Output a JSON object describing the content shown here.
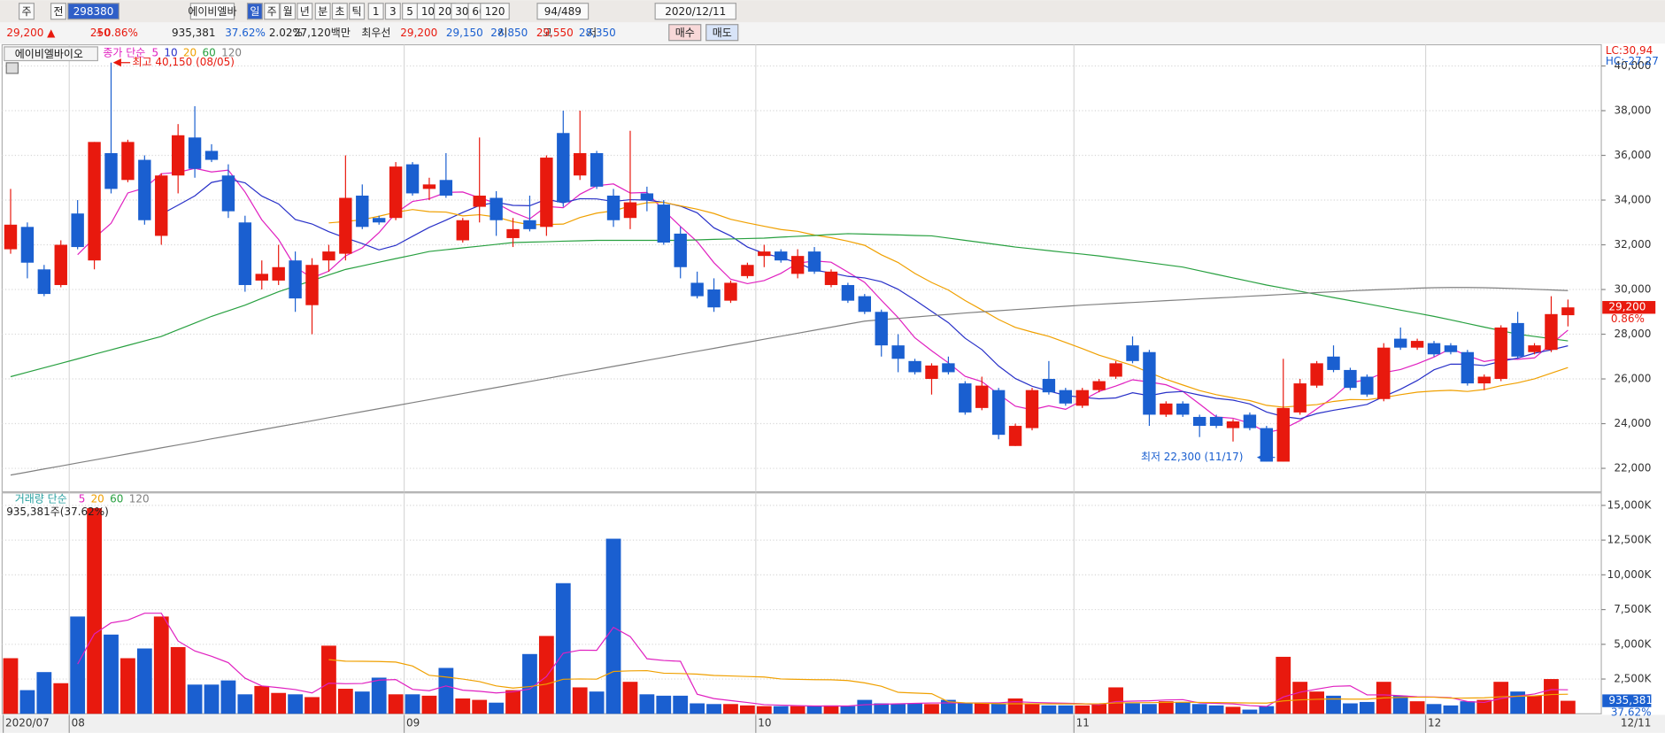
{
  "toolbar": {
    "items": [
      "주",
      "전",
      "298380",
      "에이비엘바",
      "일",
      "주",
      "월",
      "년",
      "분",
      "초",
      "틱",
      "1",
      "3",
      "5",
      "10",
      "20",
      "30",
      "60",
      "120",
      "94/489",
      "2020/12/11"
    ]
  },
  "info": {
    "items": [
      "29,200 ▲",
      "250",
      "+0.86%",
      "935,381",
      "37.62%",
      "2.02%",
      "27,120백만",
      "최우선",
      "29,200",
      "29,150",
      "시",
      "28,850",
      "고",
      "29,550",
      "저",
      "28,350",
      "매수",
      "매도"
    ]
  },
  "chart_data": [
    {
      "type": "candlestick",
      "title": "에이비엘바이오",
      "legend_label": "종가 단순",
      "categories": [
        "2020/07",
        null,
        null,
        null,
        "08",
        null,
        null,
        null,
        null,
        null,
        null,
        null,
        null,
        null,
        null,
        null,
        null,
        null,
        null,
        null,
        null,
        null,
        null,
        null,
        "09",
        null,
        null,
        null,
        null,
        null,
        null,
        null,
        null,
        null,
        null,
        null,
        null,
        null,
        null,
        null,
        null,
        null,
        null,
        null,
        null,
        "10",
        null,
        null,
        null,
        null,
        null,
        null,
        null,
        null,
        null,
        null,
        null,
        null,
        null,
        null,
        null,
        null,
        null,
        null,
        "11",
        null,
        null,
        null,
        null,
        null,
        null,
        null,
        null,
        null,
        null,
        null,
        null,
        null,
        null,
        null,
        null,
        null,
        null,
        null,
        null,
        "12",
        null,
        null,
        null,
        null,
        null,
        null,
        null,
        "12/11"
      ],
      "open": [
        31800,
        32800,
        30900,
        30200,
        33400,
        31300,
        36100,
        34900,
        35800,
        32400,
        35100,
        36800,
        36200,
        35100,
        33000,
        30400,
        30400,
        31300,
        29300,
        31300,
        31600,
        34200,
        33200,
        33200,
        35600,
        34500,
        34900,
        32200,
        33700,
        34100,
        32300,
        33100,
        32800,
        37000,
        35100,
        36100,
        34200,
        33200,
        34300,
        33800,
        32500,
        30300,
        30000,
        29500,
        30600,
        31500,
        31700,
        30700,
        31700,
        30200,
        30200,
        29700,
        29000,
        27500,
        26800,
        26000,
        26700,
        25800,
        24700,
        25500,
        23000,
        23800,
        26000,
        25500,
        24800,
        25500,
        26100,
        27500,
        27200,
        24400,
        24900,
        24300,
        24300,
        23800,
        24400,
        23800,
        22300,
        24500,
        25700,
        27000,
        26400,
        26100,
        25100,
        27800,
        27400,
        27600,
        27500,
        27200,
        25800,
        26000,
        28500,
        27200,
        27300,
        28850
      ],
      "high": [
        34500,
        33000,
        31100,
        32200,
        34000,
        36600,
        40150,
        36700,
        36000,
        35200,
        37400,
        38200,
        36500,
        35600,
        33300,
        31300,
        32000,
        31700,
        31400,
        32000,
        36000,
        34700,
        33300,
        35700,
        35700,
        35000,
        36100,
        33200,
        36800,
        34400,
        33200,
        34200,
        36000,
        38000,
        38000,
        36200,
        34500,
        37100,
        34600,
        34000,
        32800,
        30800,
        30500,
        30400,
        31200,
        32000,
        31800,
        31800,
        31900,
        30900,
        30300,
        29800,
        29100,
        28000,
        26900,
        26700,
        27000,
        25900,
        26100,
        25600,
        24000,
        25600,
        26800,
        25600,
        25600,
        26000,
        26800,
        27900,
        27300,
        25000,
        25000,
        24400,
        24400,
        24200,
        24500,
        23900,
        26900,
        26000,
        26800,
        27500,
        26500,
        26200,
        27600,
        28300,
        27800,
        27700,
        27600,
        27300,
        26200,
        28400,
        29000,
        27600,
        29700,
        29550
      ],
      "low": [
        31600,
        30500,
        29700,
        30100,
        31800,
        30900,
        34300,
        34800,
        32900,
        32000,
        34300,
        35000,
        35700,
        33200,
        29900,
        30000,
        30200,
        29000,
        28000,
        30800,
        31300,
        32700,
        32900,
        33100,
        34200,
        34000,
        34100,
        32100,
        33000,
        32400,
        31900,
        32600,
        32400,
        33700,
        34900,
        34500,
        32800,
        32700,
        33500,
        32000,
        30500,
        29600,
        29000,
        29400,
        30500,
        31000,
        31200,
        30500,
        30700,
        30100,
        29400,
        28900,
        27000,
        26300,
        26200,
        25300,
        26200,
        24400,
        24600,
        23300,
        23000,
        23700,
        25300,
        24800,
        24700,
        25400,
        26000,
        26700,
        23900,
        24300,
        24300,
        23400,
        23800,
        23200,
        23700,
        22300,
        22300,
        24400,
        25600,
        26300,
        25500,
        25200,
        25000,
        27300,
        27300,
        27000,
        27100,
        25700,
        25500,
        25900,
        26900,
        27100,
        27200,
        28350
      ],
      "close": [
        32900,
        31200,
        29800,
        32000,
        31900,
        36600,
        34500,
        36600,
        33100,
        35100,
        36900,
        35400,
        35800,
        33500,
        30200,
        30700,
        31000,
        29600,
        31100,
        31700,
        34100,
        32800,
        33000,
        35500,
        34300,
        34700,
        34200,
        33100,
        34200,
        33100,
        32700,
        32700,
        35900,
        33900,
        36100,
        34600,
        33100,
        33900,
        34000,
        32100,
        31000,
        29700,
        29200,
        30300,
        31100,
        31700,
        31300,
        31500,
        30800,
        30800,
        29500,
        29000,
        27500,
        26900,
        26300,
        26600,
        26300,
        24500,
        25700,
        23500,
        23900,
        25500,
        25400,
        24900,
        25500,
        25900,
        26700,
        26800,
        24400,
        24900,
        24400,
        23900,
        23900,
        24100,
        23800,
        22300,
        24700,
        25800,
        26700,
        26400,
        25600,
        25300,
        27400,
        27400,
        27700,
        27100,
        27200,
        25800,
        26100,
        28300,
        27000,
        27500,
        28900,
        29200
      ],
      "up_color": "#e8190e",
      "down_color": "#1a5fd0",
      "series": [
        {
          "name": "5",
          "color": "#e020c0"
        },
        {
          "name": "10",
          "color": "#2830c8"
        },
        {
          "name": "20",
          "color": "#f0a000"
        },
        {
          "name": "60",
          "color": "#28a040",
          "values": [
            26100,
            26300,
            26500,
            26700,
            26900,
            27100,
            27300,
            27500,
            27700,
            27900,
            28200,
            28500,
            28800,
            29050,
            29300,
            29600,
            29900,
            30150,
            30400,
            30650,
            30900,
            31060,
            31220,
            31380,
            31540,
            31700,
            31780,
            31860,
            31940,
            32020,
            32100,
            32120,
            32140,
            32160,
            32180,
            32200,
            32200,
            32200,
            32200,
            32200,
            32200,
            32220,
            32240,
            32260,
            32280,
            32300,
            32340,
            32380,
            32420,
            32460,
            32500,
            32480,
            32460,
            32440,
            32420,
            32400,
            32300,
            32200,
            32100,
            32000,
            31900,
            31820,
            31740,
            31660,
            31580,
            31500,
            31400,
            31300,
            31200,
            31100,
            31000,
            30840,
            30680,
            30520,
            30360,
            30200,
            30060,
            29920,
            29780,
            29640,
            29500,
            29360,
            29220,
            29080,
            28940,
            28800,
            28640,
            28480,
            28320,
            28160,
            28000,
            27900,
            27800,
            27700
          ]
        },
        {
          "name": "120",
          "color": "#808080",
          "values": [
            21700,
            21835,
            21970,
            22105,
            22240,
            22375,
            22510,
            22645,
            22780,
            22915,
            23050,
            23185,
            23320,
            23455,
            23590,
            23725,
            23860,
            23995,
            24130,
            24265,
            24400,
            24535,
            24670,
            24805,
            24940,
            25075,
            25210,
            25345,
            25480,
            25615,
            25750,
            25885,
            26020,
            26155,
            26290,
            26425,
            26560,
            26695,
            26830,
            26965,
            27100,
            27235,
            27370,
            27505,
            27640,
            27775,
            27910,
            28045,
            28180,
            28315,
            28450,
            28585,
            28650,
            28710,
            28770,
            28830,
            28890,
            28950,
            29000,
            29050,
            29100,
            29150,
            29200,
            29250,
            29300,
            29340,
            29380,
            29420,
            29460,
            29500,
            29540,
            29580,
            29620,
            29660,
            29700,
            29740,
            29780,
            29820,
            29860,
            29900,
            29940,
            29970,
            30000,
            30030,
            30060,
            30080,
            30090,
            30090,
            30080,
            30060,
            30040,
            30010,
            29980,
            29950
          ]
        }
      ],
      "ylim": [
        20950,
        40950
      ],
      "yticks": [
        {
          "value": 22000,
          "label": "22,000"
        },
        {
          "value": 24000,
          "label": "24,000"
        },
        {
          "value": 26000,
          "label": "26,000"
        },
        {
          "value": 28000,
          "label": "28,000"
        },
        {
          "value": 30000,
          "label": "30,000"
        },
        {
          "value": 32000,
          "label": "32,000"
        },
        {
          "value": 34000,
          "label": "34,000"
        },
        {
          "value": 36000,
          "label": "36,000"
        },
        {
          "value": 38000,
          "label": "38,000"
        },
        {
          "value": 40000,
          "label": "40,000"
        }
      ],
      "annotations": [
        {
          "text": "최고 40,150 (08/05)",
          "index": 6
        },
        {
          "text": "최저 22,300 (11/17)",
          "index": 75
        }
      ],
      "corner_labels": [
        "LC:30,94",
        "HC:-27,27"
      ],
      "last_price": {
        "label": "29,200",
        "change": "0.86%"
      }
    },
    {
      "type": "bar",
      "title": "거래량 단순",
      "subtitle": "935,381주(37.62%)",
      "values": [
        4000,
        1700,
        3000,
        2200,
        7000,
        14800,
        5700,
        4000,
        4700,
        7000,
        4800,
        2100,
        2100,
        2400,
        1400,
        2000,
        1500,
        1400,
        1200,
        4900,
        1800,
        1600,
        2600,
        1400,
        1400,
        1300,
        3300,
        1100,
        1000,
        800,
        1700,
        4300,
        5600,
        9400,
        1900,
        1600,
        12600,
        2300,
        1400,
        1300,
        1300,
        750,
        700,
        700,
        600,
        550,
        550,
        550,
        550,
        600,
        550,
        1000,
        750,
        700,
        750,
        700,
        1000,
        750,
        750,
        750,
        1100,
        750,
        600,
        600,
        600,
        700,
        1900,
        750,
        700,
        900,
        850,
        700,
        600,
        500,
        300,
        550,
        4100,
        2300,
        1600,
        1300,
        750,
        850,
        2300,
        1300,
        900,
        700,
        600,
        900,
        1000,
        2300,
        1600,
        1300,
        2500,
        935.381
      ],
      "value_labels": {
        "93": "935,381"
      },
      "last_pct": "37.62%",
      "series": [
        {
          "name": "5",
          "color": "#e020c0"
        },
        {
          "name": "20",
          "color": "#f0a000"
        },
        {
          "name": "60",
          "color": "#28a040"
        },
        {
          "name": "120",
          "color": "#808080"
        }
      ],
      "ylim": [
        0,
        15900
      ],
      "yticks": [
        {
          "value": 2500,
          "label": "2,500K"
        },
        {
          "value": 5000,
          "label": "5,000K"
        },
        {
          "value": 7500,
          "label": "7,500K"
        },
        {
          "value": 10000,
          "label": "10,000K"
        },
        {
          "value": 12500,
          "label": "12,500K"
        },
        {
          "value": 15000,
          "label": "15,000K"
        }
      ]
    }
  ]
}
